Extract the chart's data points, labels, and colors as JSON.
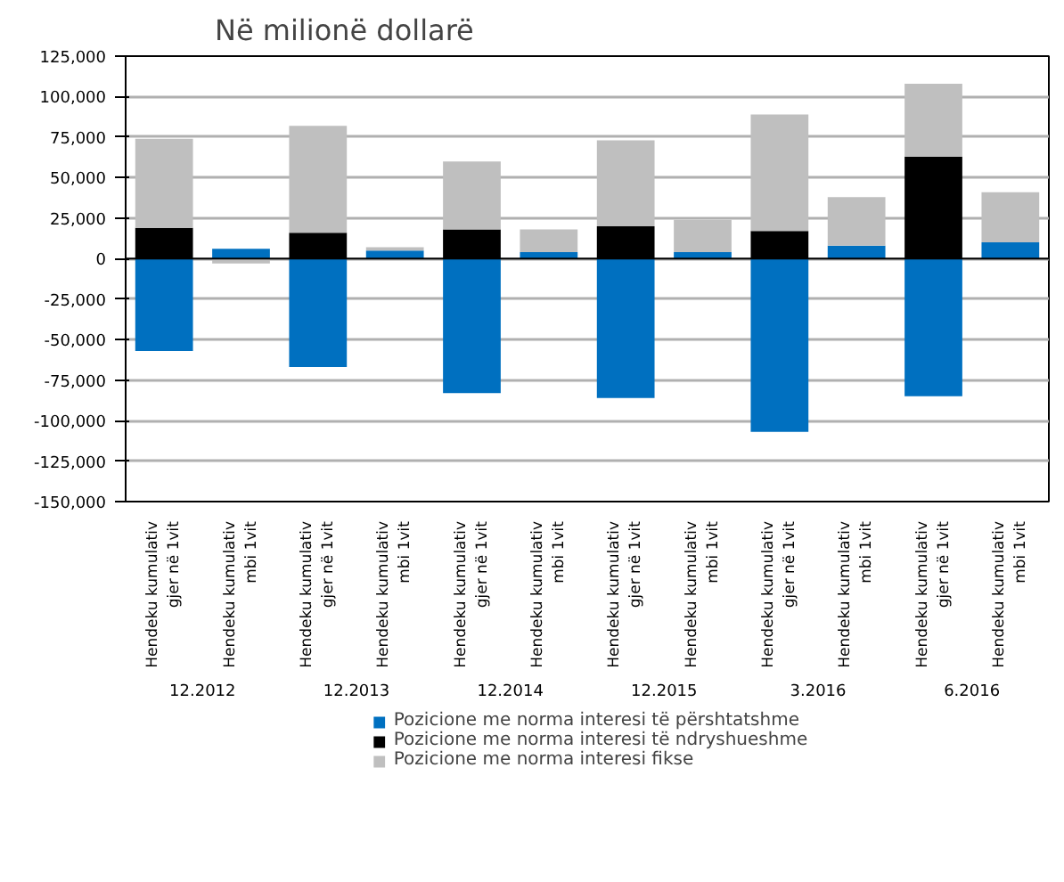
{
  "chart_data": {
    "type": "bar",
    "stacked": true,
    "title": "Në milionë dollarë",
    "categories": [
      "Hendeku kumulativ\ngjer në 1vit",
      "Hendeku kumulativ\nmbi 1vit",
      "Hendeku kumulativ\ngjer në 1vit",
      "Hendeku kumulativ\nmbi 1vit",
      "Hendeku kumulativ\ngjer në 1vit",
      "Hendeku kumulativ\nmbi 1vit",
      "Hendeku kumulativ\ngjer në 1vit",
      "Hendeku kumulativ\nmbi 1vit",
      "Hendeku kumulativ\ngjer në 1vit",
      "Hendeku kumulativ\nmbi 1vit",
      "Hendeku kumulativ\ngjer në 1vit",
      "Hendeku kumulativ\nmbi 1vit"
    ],
    "annotations": [
      "12.2012",
      "12.2013",
      "12.2014",
      "12.2015",
      "3.2016",
      "6.2016"
    ],
    "series": [
      {
        "name": "Pozicione me norma interesi të përshtatshme",
        "color": "#0070c0",
        "values": [
          -57000,
          6000,
          -67000,
          5000,
          -83000,
          4000,
          -86000,
          4000,
          -107000,
          8000,
          -85000,
          10000
        ]
      },
      {
        "name": "Pozicione me norma interesi të ndryshueshme",
        "color": "#000000",
        "values": [
          19000,
          null,
          16000,
          null,
          18000,
          null,
          20000,
          null,
          17000,
          null,
          63000,
          null
        ]
      },
      {
        "name": "Pozicione me norma interesi fikse",
        "color": "#bfbfbf",
        "values": [
          55000,
          -3000,
          66000,
          2000,
          42000,
          14000,
          53000,
          20000,
          72000,
          30000,
          45000,
          31000
        ]
      }
    ],
    "ylim": [
      -150000,
      125000
    ],
    "yticks": [
      {
        "value": -150000,
        "label": "-150,000"
      },
      {
        "value": -125000,
        "label": "-125,000"
      },
      {
        "value": -100000,
        "label": "-100,000"
      },
      {
        "value": -75000,
        "label": "-75,000"
      },
      {
        "value": -50000,
        "label": "-50,000"
      },
      {
        "value": -25000,
        "label": "-25,000"
      },
      {
        "value": 0,
        "label": "0"
      },
      {
        "value": 25000,
        "label": "25,000"
      },
      {
        "value": 50000,
        "label": "50,000"
      },
      {
        "value": 75000,
        "label": "75,000"
      },
      {
        "value": 100000,
        "label": "100,000"
      },
      {
        "value": 125000,
        "label": "125,000"
      }
    ],
    "grid": "y",
    "legend": "bottom"
  }
}
